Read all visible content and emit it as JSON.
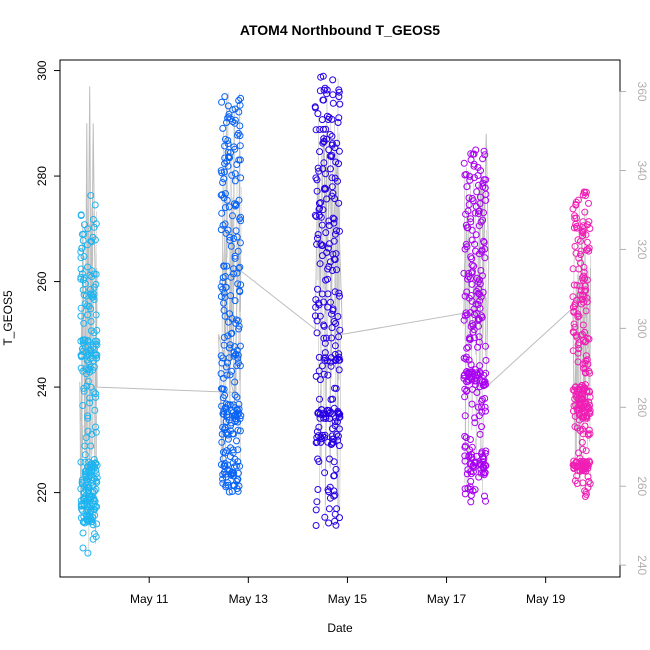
{
  "chart_data": {
    "type": "scatter",
    "title": "ATOM4 Northbound T_GEOS5",
    "xlabel": "Date",
    "ylabel": "T_GEOS5",
    "x_ticks": [
      "May 11",
      "May 13",
      "May 15",
      "May 17",
      "May 19"
    ],
    "x_tick_values": [
      11,
      13,
      15,
      17,
      19
    ],
    "xlim": [
      9.2,
      20.5
    ],
    "ylim": [
      204,
      302
    ],
    "y_ticks": [
      220,
      240,
      260,
      280,
      300
    ],
    "y2lim": [
      237,
      368
    ],
    "y2_ticks": [
      240,
      260,
      280,
      300,
      320,
      340,
      360
    ],
    "grid": false,
    "colors": {
      "flight1": "#1eb4f0",
      "flight2": "#0a64f5",
      "flight3": "#2800e6",
      "flight4": "#a800f0",
      "flight5": "#f01eb4",
      "line": "#bdbdbd",
      "right_axis": "#b0b0b0"
    },
    "flights": [
      {
        "x": [
          9.62,
          9.95
        ],
        "ymin": 208,
        "ymax": 277,
        "clusters": [
          [
            214,
            226,
            0.4
          ],
          [
            243,
            249,
            0.15
          ]
        ]
      },
      {
        "x": [
          12.45,
          12.85
        ],
        "ymin": 219,
        "ymax": 296,
        "clusters": [
          [
            220,
            226,
            0.15
          ],
          [
            231,
            237,
            0.1
          ]
        ]
      },
      {
        "x": [
          14.35,
          14.85
        ],
        "ymin": 213,
        "ymax": 299,
        "clusters": [
          [
            229,
            231,
            0.06
          ],
          [
            234,
            236,
            0.06
          ],
          [
            245,
            246,
            0.05
          ]
        ]
      },
      {
        "x": [
          17.35,
          17.8
        ],
        "ymin": 218,
        "ymax": 285,
        "clusters": [
          [
            223,
            229,
            0.12
          ],
          [
            241,
            243,
            0.1
          ]
        ]
      },
      {
        "x": [
          19.55,
          19.9
        ],
        "ymin": 219,
        "ymax": 277,
        "clusters": [
          [
            224,
            226,
            0.12
          ],
          [
            234,
            240,
            0.2
          ]
        ]
      }
    ],
    "line_points": [
      [
        9.6,
        241
      ],
      [
        9.62,
        218
      ],
      [
        9.66,
        271
      ],
      [
        9.7,
        228
      ],
      [
        9.74,
        290
      ],
      [
        9.76,
        252
      ],
      [
        9.8,
        297
      ],
      [
        9.83,
        247
      ],
      [
        9.87,
        290
      ],
      [
        9.9,
        265
      ],
      [
        9.95,
        240
      ],
      [
        12.7,
        239
      ],
      [
        12.4,
        250
      ],
      [
        12.48,
        223
      ],
      [
        12.55,
        268
      ],
      [
        12.6,
        242
      ],
      [
        12.67,
        276
      ],
      [
        12.72,
        236
      ],
      [
        12.8,
        268
      ],
      [
        12.85,
        262
      ],
      [
        14.35,
        251
      ],
      [
        14.4,
        281
      ],
      [
        14.45,
        259
      ],
      [
        14.52,
        288
      ],
      [
        14.58,
        264
      ],
      [
        14.65,
        279
      ],
      [
        14.7,
        268
      ],
      [
        14.8,
        282
      ],
      [
        14.85,
        265
      ],
      [
        14.9,
        250
      ],
      [
        17.35,
        254
      ],
      [
        17.4,
        271
      ],
      [
        17.5,
        247
      ],
      [
        17.57,
        262
      ],
      [
        17.62,
        252
      ],
      [
        17.7,
        281
      ],
      [
        17.75,
        262
      ],
      [
        17.8,
        288
      ],
      [
        17.85,
        263
      ],
      [
        17.8,
        240
      ],
      [
        19.55,
        255
      ],
      [
        19.58,
        232
      ],
      [
        19.63,
        259
      ],
      [
        19.68,
        228
      ],
      [
        19.73,
        271
      ],
      [
        19.78,
        238
      ],
      [
        19.85,
        262
      ],
      [
        19.9,
        250
      ]
    ]
  }
}
